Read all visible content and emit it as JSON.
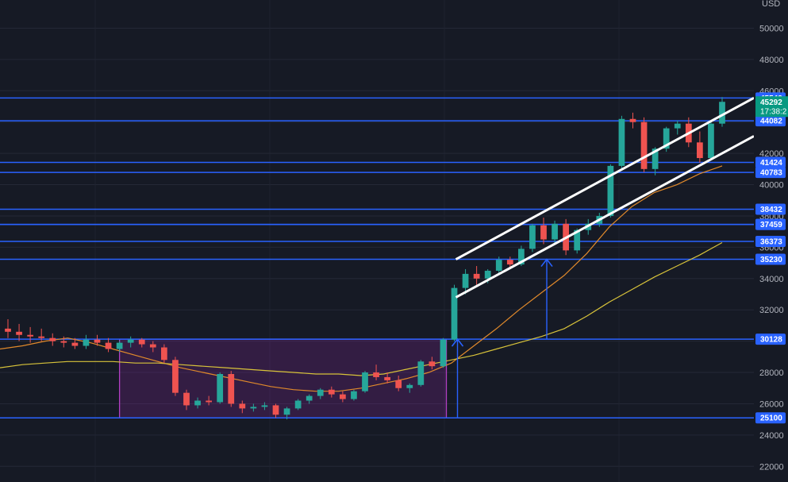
{
  "chart_data": {
    "type": "candlestick",
    "currency": "USD",
    "y_axis": {
      "ticks": [
        22000,
        24000,
        26000,
        28000,
        30000,
        32000,
        34000,
        36000,
        38000,
        40000,
        42000,
        44000,
        46000,
        48000,
        50000
      ],
      "range": [
        21000,
        51800
      ],
      "grid": true
    },
    "current_price": {
      "value": "45292",
      "countdown": "17:38:2"
    },
    "levels": [
      45542,
      44082,
      41424,
      40783,
      38432,
      37459,
      37459,
      36373,
      35230,
      30128,
      25100
    ],
    "range_box": {
      "from_price": 25100,
      "to_price": 30128
    },
    "channel": {
      "upper": {
        "start": 35230,
        "end": 45542
      },
      "lower": {
        "start": 32800,
        "end": 43100
      }
    },
    "moving_averages": [
      {
        "color": "#e0892b",
        "values": [
          29500,
          29700,
          30000,
          30200,
          29900,
          29500,
          29100,
          28700,
          28300,
          28000,
          27700,
          27400,
          27100,
          26900,
          26800,
          26800,
          27000,
          27300,
          27600,
          28000,
          28600,
          29700,
          30800,
          32000,
          33100,
          34200,
          35600,
          37300,
          38600,
          39500,
          40000,
          40700,
          41200
        ]
      },
      {
        "color": "#d8c33a",
        "values": [
          28300,
          28500,
          28600,
          28700,
          28700,
          28700,
          28600,
          28600,
          28500,
          28400,
          28300,
          28200,
          28100,
          28000,
          27900,
          27900,
          27800,
          27900,
          28200,
          28500,
          28800,
          29100,
          29500,
          29900,
          30300,
          30800,
          31600,
          32500,
          33300,
          34100,
          34800,
          35500,
          36300
        ]
      }
    ],
    "candles": [
      [
        30800,
        31400,
        30200,
        30600
      ],
      [
        30600,
        31100,
        30000,
        30400
      ],
      [
        30400,
        30900,
        29900,
        30300
      ],
      [
        30300,
        30800,
        30000,
        30200
      ],
      [
        30200,
        30500,
        29700,
        30000
      ],
      [
        30000,
        30300,
        29600,
        29900
      ],
      [
        29900,
        30200,
        29500,
        29700
      ],
      [
        29700,
        30400,
        29500,
        30100
      ],
      [
        30100,
        30400,
        29700,
        29900
      ],
      [
        29900,
        30200,
        29300,
        29500
      ],
      [
        29500,
        30000,
        29300,
        29900
      ],
      [
        29900,
        30300,
        29600,
        30100
      ],
      [
        30100,
        30200,
        29600,
        29800
      ],
      [
        29800,
        30000,
        29300,
        29600
      ],
      [
        29600,
        29800,
        28600,
        28800
      ],
      [
        28800,
        29000,
        26500,
        26700
      ],
      [
        26700,
        26900,
        25600,
        25900
      ],
      [
        25900,
        26400,
        25700,
        26200
      ],
      [
        26200,
        26500,
        25900,
        26100
      ],
      [
        26100,
        28000,
        26000,
        27900
      ],
      [
        27900,
        28100,
        25800,
        26000
      ],
      [
        26000,
        26200,
        25400,
        25700
      ],
      [
        25700,
        26000,
        25500,
        25800
      ],
      [
        25800,
        26100,
        25600,
        25900
      ],
      [
        25900,
        26000,
        25100,
        25300
      ],
      [
        25300,
        25800,
        25000,
        25700
      ],
      [
        25700,
        26300,
        25600,
        26200
      ],
      [
        26200,
        26600,
        26000,
        26500
      ],
      [
        26500,
        27000,
        26300,
        26900
      ],
      [
        26900,
        27100,
        26400,
        26600
      ],
      [
        26600,
        26800,
        26100,
        26300
      ],
      [
        26300,
        26900,
        26200,
        26800
      ],
      [
        26800,
        28100,
        26700,
        28000
      ],
      [
        28000,
        28500,
        27500,
        27700
      ],
      [
        27700,
        28000,
        27300,
        27500
      ],
      [
        27500,
        27800,
        26800,
        27000
      ],
      [
        27000,
        27300,
        26700,
        27200
      ],
      [
        27200,
        28800,
        27100,
        28700
      ],
      [
        28700,
        29000,
        28200,
        28400
      ],
      [
        28400,
        30200,
        28300,
        30100
      ],
      [
        30100,
        33600,
        30000,
        33400
      ],
      [
        33400,
        34600,
        33000,
        34300
      ],
      [
        34300,
        34800,
        33600,
        34000
      ],
      [
        34000,
        34600,
        33700,
        34500
      ],
      [
        34500,
        35400,
        34300,
        35200
      ],
      [
        35200,
        35400,
        34600,
        34900
      ],
      [
        34900,
        36100,
        34800,
        35900
      ],
      [
        35900,
        37500,
        35700,
        37400
      ],
      [
        37400,
        37900,
        36200,
        36500
      ],
      [
        36500,
        37700,
        36200,
        37500
      ],
      [
        37500,
        37800,
        35500,
        35800
      ],
      [
        35800,
        37200,
        35600,
        37100
      ],
      [
        37100,
        37800,
        36800,
        37500
      ],
      [
        37500,
        38200,
        37300,
        38000
      ],
      [
        38000,
        41300,
        37900,
        41200
      ],
      [
        41200,
        44400,
        41000,
        44200
      ],
      [
        44200,
        44600,
        43600,
        44000
      ],
      [
        44000,
        44300,
        40800,
        41000
      ],
      [
        41000,
        42400,
        40600,
        42300
      ],
      [
        42300,
        43700,
        42100,
        43600
      ],
      [
        43600,
        44100,
        43200,
        43900
      ],
      [
        43900,
        44300,
        42400,
        42700
      ],
      [
        42700,
        43400,
        41400,
        41700
      ],
      [
        41700,
        44100,
        41600,
        43900
      ],
      [
        43900,
        45600,
        43700,
        45292
      ]
    ]
  }
}
